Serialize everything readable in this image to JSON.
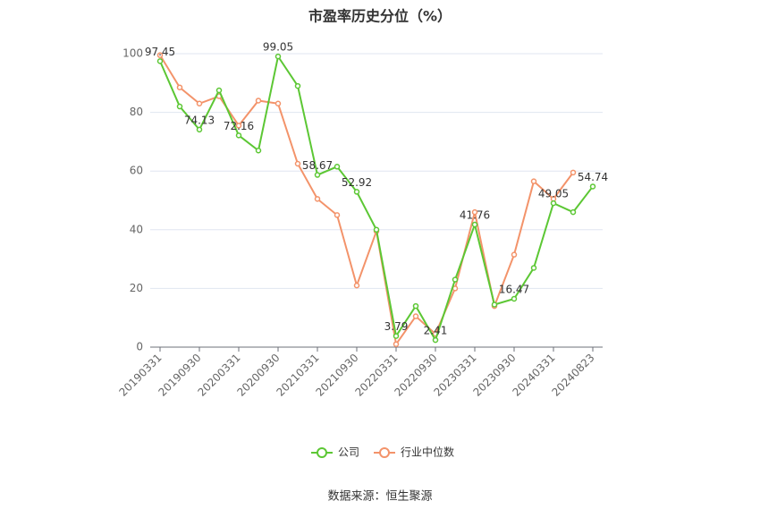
{
  "chart_data": {
    "type": "line",
    "title": "市盈率历史分位（%）",
    "categories": [
      "20190331",
      null,
      "20190930",
      null,
      "20200331",
      null,
      "20200930",
      null,
      "20210331",
      null,
      "20210930",
      null,
      "20220331",
      null,
      "20220930",
      null,
      "20230331",
      null,
      "20230930",
      null,
      "20240331",
      null,
      "20240823"
    ],
    "series": [
      {
        "name": "公司",
        "color": "#5cc734",
        "values": [
          97.45,
          82,
          74.13,
          87.5,
          72.16,
          67,
          99.05,
          89,
          58.67,
          61.5,
          52.92,
          40,
          3.79,
          14,
          2.41,
          23,
          41.76,
          14.5,
          16.47,
          27,
          49.05,
          46,
          54.74
        ],
        "value_labels": [
          "97.45",
          null,
          "74.13",
          null,
          "72.16",
          null,
          "99.05",
          null,
          "58.67",
          null,
          "52.92",
          null,
          "3.79",
          null,
          "2.41",
          null,
          "41.76",
          null,
          "16.47",
          null,
          "49.05",
          null,
          "54.74"
        ]
      },
      {
        "name": "行业中位数",
        "color": "#f3936a",
        "values": [
          99.5,
          88.5,
          83,
          85.5,
          75.5,
          84,
          83,
          62.5,
          50.5,
          45,
          21,
          39.5,
          1,
          10.5,
          4.5,
          20,
          46,
          14,
          31.5,
          56.5,
          50.5,
          59.5,
          null
        ]
      }
    ],
    "ylim": [
      0,
      100
    ],
    "yticks": [
      0,
      20,
      40,
      60,
      80,
      100
    ],
    "grid": true,
    "source": "数据来源：恒生聚源"
  }
}
